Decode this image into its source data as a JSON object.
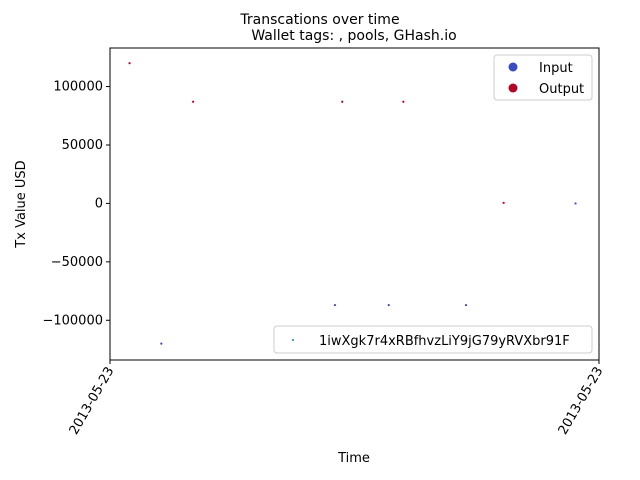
{
  "chart_data": {
    "type": "scatter",
    "suptitle": "Transcations over time",
    "title": "Wallet tags: , pools, GHash.io",
    "xlabel": "Time",
    "ylabel": "Tx Value USD",
    "x_tick_labels": [
      "2013-05-23",
      "2013-05-23"
    ],
    "y_ticks": [
      -100000,
      -50000,
      0,
      50000,
      100000
    ],
    "y_tick_labels": [
      "−100000",
      "−50000",
      "0",
      "50000",
      "100000"
    ],
    "ylim": [
      -134000,
      133000
    ],
    "xlim": [
      0,
      1
    ],
    "grid": false,
    "legend_upper_right": {
      "placement": "upper-right",
      "entries": [
        {
          "label": "Input",
          "color": "#3b4cc0"
        },
        {
          "label": "Output",
          "color": "#b40426"
        }
      ]
    },
    "legend_lower_right": {
      "placement": "lower-right",
      "entries": [
        {
          "label": "1iwXgk7r4xRBfhvzLiY9jG79yRVXbr91F",
          "color": "#1f77b4"
        }
      ]
    },
    "series": [
      {
        "type": "Output",
        "color": "#b40426",
        "points": [
          {
            "x": 0.04,
            "y": 120000
          },
          {
            "x": 0.17,
            "y": 87000
          },
          {
            "x": 0.475,
            "y": 87000
          },
          {
            "x": 0.6,
            "y": 87000
          },
          {
            "x": 0.805,
            "y": 500
          }
        ]
      },
      {
        "type": "Input",
        "color": "#3b4cc0",
        "points": [
          {
            "x": 0.105,
            "y": -120000
          },
          {
            "x": 0.46,
            "y": -87000
          },
          {
            "x": 0.57,
            "y": -87000
          },
          {
            "x": 0.728,
            "y": -87000
          },
          {
            "x": 0.952,
            "y": 0
          }
        ]
      }
    ]
  }
}
